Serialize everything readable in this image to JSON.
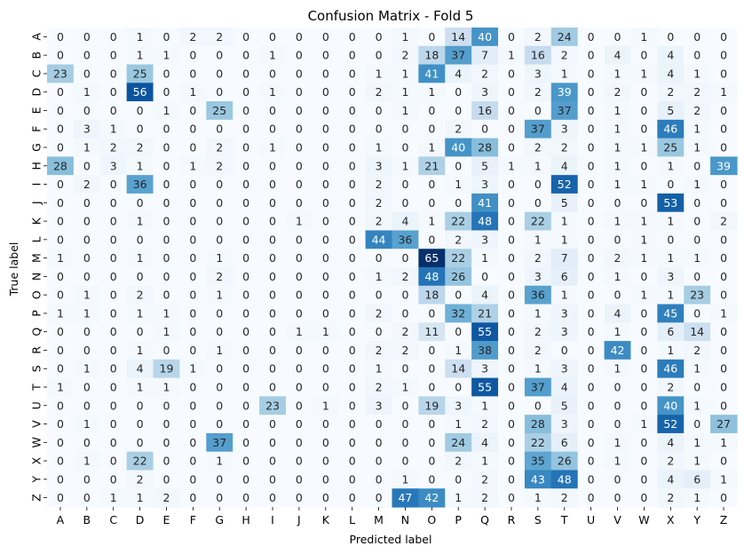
{
  "chart_data": {
    "type": "heatmap",
    "title": "Confusion Matrix - Fold 5",
    "xlabel": "Predicted label",
    "ylabel": "True label",
    "x_categories": [
      "A",
      "B",
      "C",
      "D",
      "E",
      "F",
      "G",
      "H",
      "I",
      "J",
      "K",
      "L",
      "M",
      "N",
      "O",
      "P",
      "Q",
      "R",
      "S",
      "T",
      "U",
      "V",
      "W",
      "X",
      "Y",
      "Z"
    ],
    "y_categories": [
      "A",
      "B",
      "C",
      "D",
      "E",
      "F",
      "G",
      "H",
      "I",
      "J",
      "K",
      "L",
      "M",
      "N",
      "O",
      "P",
      "Q",
      "R",
      "S",
      "T",
      "U",
      "V",
      "W",
      "X",
      "Y",
      "Z"
    ],
    "values": [
      [
        0,
        0,
        0,
        1,
        0,
        2,
        2,
        0,
        0,
        0,
        0,
        0,
        0,
        1,
        0,
        14,
        40,
        0,
        2,
        24,
        0,
        0,
        1,
        0,
        0,
        0
      ],
      [
        0,
        0,
        0,
        1,
        1,
        0,
        0,
        0,
        1,
        0,
        0,
        0,
        0,
        2,
        18,
        37,
        7,
        1,
        16,
        2,
        0,
        4,
        0,
        4,
        0,
        0
      ],
      [
        23,
        0,
        0,
        25,
        0,
        0,
        0,
        0,
        0,
        0,
        0,
        0,
        1,
        1,
        41,
        4,
        2,
        0,
        3,
        1,
        0,
        1,
        1,
        4,
        1,
        0
      ],
      [
        0,
        1,
        0,
        56,
        0,
        1,
        0,
        0,
        1,
        0,
        0,
        0,
        2,
        1,
        1,
        0,
        3,
        0,
        2,
        39,
        0,
        2,
        0,
        2,
        2,
        1
      ],
      [
        0,
        0,
        0,
        0,
        1,
        0,
        25,
        0,
        0,
        0,
        0,
        0,
        0,
        1,
        0,
        0,
        16,
        0,
        0,
        37,
        0,
        1,
        0,
        5,
        2,
        0
      ],
      [
        0,
        3,
        1,
        0,
        0,
        0,
        0,
        0,
        0,
        0,
        0,
        0,
        0,
        0,
        0,
        2,
        0,
        0,
        37,
        3,
        0,
        1,
        0,
        46,
        1,
        0
      ],
      [
        0,
        1,
        2,
        2,
        0,
        0,
        2,
        0,
        1,
        0,
        0,
        0,
        1,
        0,
        1,
        40,
        28,
        0,
        2,
        2,
        0,
        1,
        1,
        25,
        1,
        0
      ],
      [
        28,
        0,
        3,
        1,
        0,
        1,
        2,
        0,
        0,
        0,
        0,
        0,
        3,
        1,
        21,
        0,
        5,
        1,
        1,
        4,
        0,
        1,
        0,
        1,
        0,
        39
      ],
      [
        0,
        2,
        0,
        36,
        0,
        0,
        0,
        0,
        0,
        0,
        0,
        0,
        2,
        0,
        0,
        1,
        3,
        0,
        0,
        52,
        0,
        1,
        1,
        0,
        1,
        0
      ],
      [
        0,
        0,
        0,
        0,
        0,
        0,
        0,
        0,
        0,
        0,
        0,
        0,
        2,
        0,
        0,
        0,
        41,
        0,
        0,
        5,
        0,
        0,
        0,
        53,
        0,
        0
      ],
      [
        0,
        0,
        0,
        1,
        0,
        0,
        0,
        0,
        0,
        1,
        0,
        0,
        2,
        4,
        1,
        22,
        48,
        0,
        22,
        1,
        0,
        1,
        1,
        1,
        0,
        2
      ],
      [
        0,
        0,
        0,
        0,
        0,
        0,
        0,
        0,
        0,
        0,
        0,
        0,
        44,
        36,
        0,
        2,
        3,
        0,
        1,
        1,
        0,
        0,
        1,
        0,
        0,
        0
      ],
      [
        1,
        0,
        0,
        1,
        0,
        0,
        1,
        0,
        0,
        0,
        0,
        0,
        0,
        0,
        65,
        22,
        1,
        0,
        2,
        7,
        0,
        2,
        1,
        1,
        1,
        0
      ],
      [
        0,
        0,
        0,
        0,
        0,
        0,
        2,
        0,
        0,
        0,
        0,
        0,
        1,
        2,
        48,
        26,
        0,
        0,
        3,
        6,
        0,
        1,
        0,
        3,
        0,
        0
      ],
      [
        0,
        1,
        0,
        2,
        0,
        0,
        1,
        0,
        0,
        0,
        0,
        0,
        0,
        0,
        18,
        0,
        4,
        0,
        36,
        1,
        0,
        0,
        1,
        1,
        23,
        0
      ],
      [
        1,
        1,
        0,
        1,
        1,
        0,
        0,
        0,
        0,
        0,
        0,
        0,
        2,
        0,
        0,
        32,
        21,
        0,
        1,
        3,
        0,
        4,
        0,
        45,
        0,
        1
      ],
      [
        0,
        0,
        0,
        0,
        1,
        0,
        0,
        0,
        0,
        1,
        1,
        0,
        0,
        2,
        11,
        0,
        55,
        0,
        2,
        3,
        0,
        1,
        0,
        6,
        14,
        0
      ],
      [
        0,
        0,
        0,
        1,
        0,
        0,
        1,
        0,
        0,
        0,
        0,
        0,
        2,
        2,
        0,
        1,
        38,
        0,
        2,
        0,
        0,
        42,
        0,
        1,
        2,
        0
      ],
      [
        0,
        1,
        0,
        4,
        19,
        1,
        0,
        0,
        0,
        0,
        0,
        0,
        1,
        0,
        0,
        14,
        3,
        0,
        1,
        3,
        0,
        1,
        0,
        46,
        1,
        0
      ],
      [
        1,
        0,
        0,
        1,
        1,
        0,
        0,
        0,
        0,
        0,
        0,
        0,
        2,
        1,
        0,
        0,
        55,
        0,
        37,
        4,
        0,
        0,
        0,
        2,
        0,
        0
      ],
      [
        0,
        0,
        0,
        0,
        0,
        0,
        0,
        0,
        23,
        0,
        1,
        0,
        3,
        0,
        19,
        3,
        1,
        0,
        0,
        5,
        0,
        0,
        0,
        40,
        1,
        0
      ],
      [
        0,
        1,
        0,
        0,
        0,
        0,
        0,
        0,
        0,
        0,
        0,
        0,
        0,
        0,
        0,
        1,
        2,
        0,
        28,
        3,
        0,
        0,
        1,
        52,
        0,
        27
      ],
      [
        0,
        0,
        0,
        0,
        0,
        0,
        37,
        0,
        0,
        0,
        0,
        0,
        0,
        0,
        0,
        24,
        4,
        0,
        22,
        6,
        0,
        1,
        0,
        4,
        1,
        1
      ],
      [
        0,
        1,
        0,
        22,
        0,
        0,
        1,
        0,
        0,
        0,
        0,
        0,
        0,
        0,
        0,
        2,
        1,
        0,
        35,
        26,
        0,
        1,
        0,
        2,
        1,
        0
      ],
      [
        0,
        0,
        0,
        2,
        0,
        0,
        0,
        0,
        0,
        0,
        0,
        0,
        0,
        1,
        0,
        0,
        2,
        0,
        43,
        48,
        0,
        0,
        0,
        4,
        6,
        1
      ],
      [
        0,
        0,
        1,
        1,
        2,
        0,
        0,
        0,
        0,
        0,
        0,
        0,
        0,
        47,
        42,
        1,
        2,
        0,
        1,
        2,
        0,
        0,
        0,
        2,
        1,
        0
      ]
    ],
    "vmax": 65,
    "colormap": "Blues",
    "colorbar": false,
    "grid": false
  }
}
